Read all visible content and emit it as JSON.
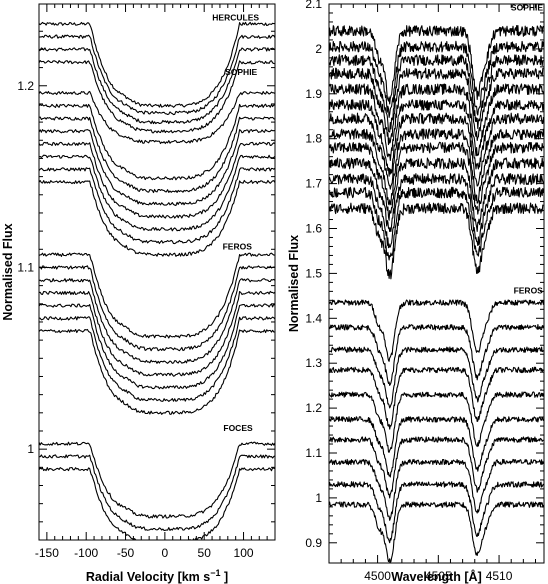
{
  "chart_data": [
    {
      "type": "line",
      "panel": "left",
      "xlabel": "Radial Velocity [km s",
      "xlabel_sup": "−1",
      "xlabel_close": "]",
      "ylabel": "Normalised Flux",
      "xlim": [
        -160,
        140
      ],
      "ylim": [
        0.95,
        1.245
      ],
      "xticks": [
        "-150",
        "-100",
        "-50",
        "0",
        "50",
        "100"
      ],
      "xtick_values": [
        -150,
        -100,
        -50,
        0,
        50,
        100
      ],
      "yticks": [
        "1",
        "1.1",
        "1.2"
      ],
      "ytick_values": [
        1.0,
        1.1,
        1.2
      ],
      "grid": false,
      "annotations": [
        {
          "text": "HERCULES",
          "x": 90,
          "y": 1.236
        },
        {
          "text": "SOPHIE",
          "x": 97,
          "y": 1.206
        },
        {
          "text": "FEROS",
          "x": 92,
          "y": 1.11
        },
        {
          "text": "FOCES",
          "x": 93,
          "y": 1.01
        }
      ],
      "series": [
        {
          "continuum": 1.234,
          "depth": 0.045
        },
        {
          "continuum": 1.227,
          "depth": 0.042
        },
        {
          "continuum": 1.22,
          "depth": 0.04
        },
        {
          "continuum": 1.213,
          "depth": 0.038
        },
        {
          "continuum": 1.196,
          "depth": 0.027
        },
        {
          "continuum": 1.189,
          "depth": 0.04
        },
        {
          "continuum": 1.182,
          "depth": 0.04
        },
        {
          "continuum": 1.175,
          "depth": 0.04
        },
        {
          "continuum": 1.168,
          "depth": 0.04
        },
        {
          "continuum": 1.161,
          "depth": 0.04
        },
        {
          "continuum": 1.154,
          "depth": 0.04
        },
        {
          "continuum": 1.147,
          "depth": 0.04
        },
        {
          "continuum": 1.107,
          "depth": 0.045
        },
        {
          "continuum": 1.1,
          "depth": 0.045
        },
        {
          "continuum": 1.093,
          "depth": 0.045
        },
        {
          "continuum": 1.086,
          "depth": 0.045
        },
        {
          "continuum": 1.079,
          "depth": 0.045
        },
        {
          "continuum": 1.072,
          "depth": 0.045
        },
        {
          "continuum": 1.065,
          "depth": 0.045
        },
        {
          "continuum": 1.003,
          "depth": 0.04
        },
        {
          "continuum": 0.996,
          "depth": 0.04
        },
        {
          "continuum": 0.989,
          "depth": 0.04
        }
      ]
    },
    {
      "type": "line",
      "panel": "right",
      "xlabel": "Wavelength [Å]",
      "ylabel": "Normalised Flux",
      "xlim": [
        4496.0,
        4513.7
      ],
      "ylim": [
        0.855,
        2.1
      ],
      "xticks": [
        "4500",
        "4505",
        "4510"
      ],
      "xtick_values": [
        4500,
        4505,
        4510
      ],
      "yticks": [
        "0.9",
        "1",
        "1.1",
        "1.2",
        "1.3",
        "1.4",
        "1.5",
        "1.6",
        "1.7",
        "1.8",
        "1.9",
        "2",
        "2.1"
      ],
      "ytick_values": [
        0.9,
        1.0,
        1.1,
        1.2,
        1.3,
        1.4,
        1.5,
        1.6,
        1.7,
        1.8,
        1.9,
        2.0,
        2.1
      ],
      "grid": false,
      "annotations": [
        {
          "text": "SOPHIE",
          "x": 4512.3,
          "y": 2.085
        },
        {
          "text": "FEROS",
          "x": 4512.4,
          "y": 1.455
        }
      ],
      "line_centres": [
        4501.0,
        4508.2
      ],
      "series": [
        {
          "continuum": 2.04
        },
        {
          "continuum": 2.005
        },
        {
          "continuum": 1.975
        },
        {
          "continuum": 1.945
        },
        {
          "continuum": 1.91
        },
        {
          "continuum": 1.875
        },
        {
          "continuum": 1.845
        },
        {
          "continuum": 1.81
        },
        {
          "continuum": 1.78
        },
        {
          "continuum": 1.745
        },
        {
          "continuum": 1.71
        },
        {
          "continuum": 1.68
        },
        {
          "continuum": 1.645
        },
        {
          "continuum": 1.435
        },
        {
          "continuum": 1.38
        },
        {
          "continuum": 1.33
        },
        {
          "continuum": 1.285
        },
        {
          "continuum": 1.23
        },
        {
          "continuum": 1.175
        },
        {
          "continuum": 1.13
        },
        {
          "continuum": 1.08
        },
        {
          "continuum": 1.03
        },
        {
          "continuum": 0.985
        }
      ]
    }
  ]
}
